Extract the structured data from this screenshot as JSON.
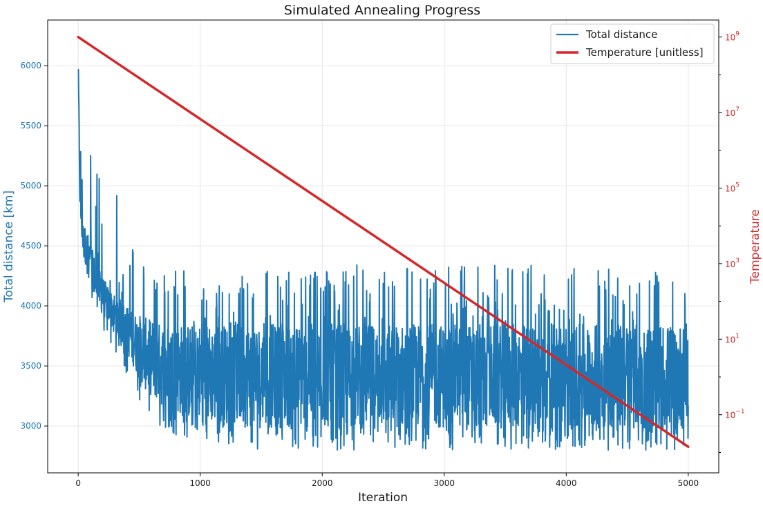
{
  "chart_data": {
    "type": "line",
    "title": "Simulated Annealing Progress",
    "xlabel": "Iteration",
    "ylabel_left": "Total distance [km]",
    "ylabel_right": "Temperature",
    "xlim": [
      -250,
      5250
    ],
    "ylim_left": [
      2610,
      6380
    ],
    "ylim_right_log10": [
      -2.54,
      9.45
    ],
    "right_scale": "log",
    "grid": true,
    "legend_position": "top-right",
    "x_ticks": [
      0,
      1000,
      2000,
      3000,
      4000,
      5000
    ],
    "x_tick_labels": [
      "0",
      "1000",
      "2000",
      "3000",
      "4000",
      "5000"
    ],
    "y_left_ticks": [
      3000,
      3500,
      4000,
      4500,
      5000,
      5500,
      6000
    ],
    "y_left_tick_labels": [
      "3000",
      "3500",
      "4000",
      "4500",
      "5000",
      "5500",
      "6000"
    ],
    "y_right_tick_exponents": [
      -1,
      1,
      3,
      5,
      7,
      9
    ],
    "y_right_tick_labels": [
      "10",
      "10",
      "10",
      "10",
      "10",
      "10"
    ],
    "y_right_tick_superscripts": [
      "−1",
      "1",
      "3",
      "5",
      "7",
      "9"
    ],
    "series": [
      {
        "name": "Total distance",
        "color": "#1f77b4",
        "axis": "left",
        "envelope": {
          "x": [
            0,
            15,
            40,
            80,
            150,
            250,
            350,
            450,
            550,
            700,
            900,
            1200,
            1500,
            2000,
            2500,
            3000,
            3500,
            4000,
            4500,
            5000
          ],
          "upper": [
            6250,
            5600,
            5500,
            5350,
            5200,
            5000,
            4900,
            4550,
            4400,
            4350,
            4450,
            4300,
            4350,
            4350,
            4350,
            4350,
            4350,
            4350,
            4350,
            4200
          ],
          "lower": [
            5850,
            4900,
            4300,
            4200,
            3850,
            3650,
            3550,
            3300,
            3100,
            2950,
            2900,
            2850,
            2800,
            2800,
            2800,
            2800,
            2800,
            2800,
            2800,
            2800
          ],
          "base_upper": [
            6100,
            5100,
            4700,
            4600,
            4350,
            4150,
            4050,
            3950,
            3900,
            3850,
            3850,
            3850,
            3850,
            3850,
            3850,
            3850,
            3850,
            3850,
            3850,
            3850
          ],
          "base_lower": [
            5900,
            4700,
            4400,
            4300,
            4000,
            3850,
            3700,
            3500,
            3300,
            3150,
            3050,
            3000,
            2980,
            2980,
            2980,
            2980,
            2980,
            2980,
            2980,
            2980
          ]
        }
      },
      {
        "name": "Temperature [unitless]",
        "color": "#d62728",
        "axis": "right",
        "x": [
          0,
          5000
        ],
        "log10_y": [
          9.0,
          -1.85
        ]
      }
    ]
  }
}
